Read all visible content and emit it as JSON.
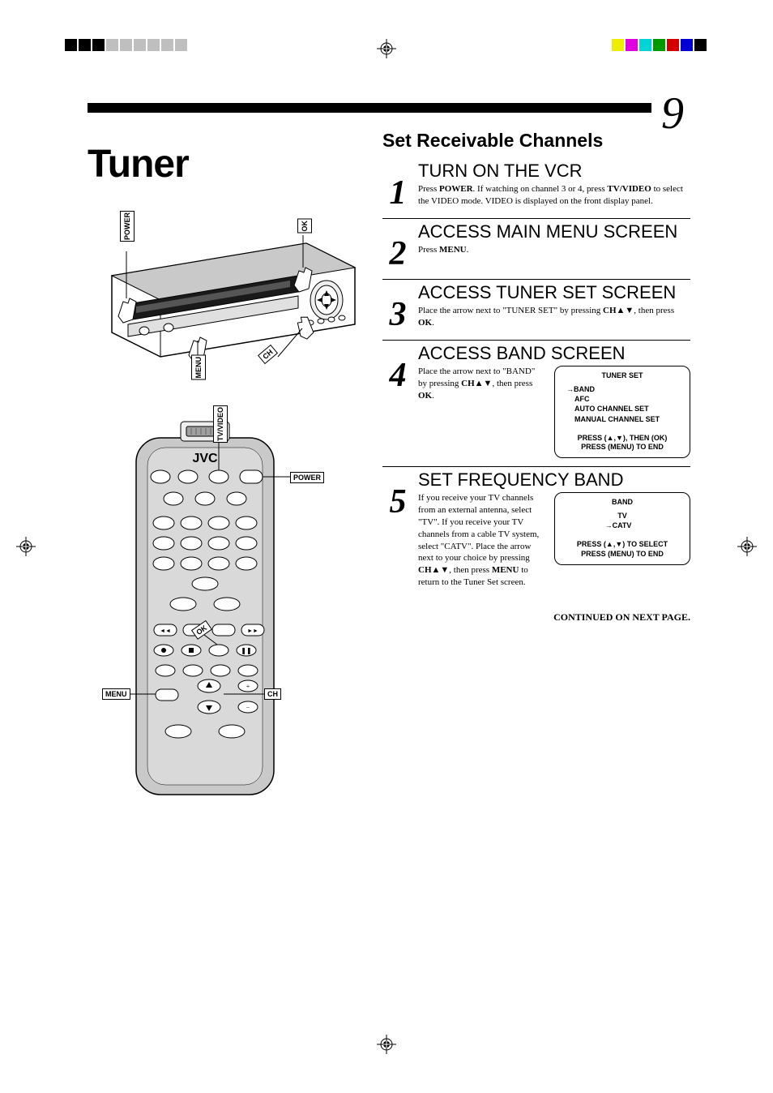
{
  "page_number": "9",
  "main_title": "Tuner",
  "section_title": "Set Receivable Channels",
  "crop_colors_left": [
    "#000000",
    "#000000",
    "#000000",
    "#bfbfbf",
    "#bfbfbf",
    "#bfbfbf",
    "#bfbfbf",
    "#bfbfbf",
    "#bfbfbf"
  ],
  "crop_colors_right": [
    "#eded00",
    "#e000e0",
    "#00d4d4",
    "#009a00",
    "#d40000",
    "#0000d4",
    "#000000"
  ],
  "callouts_vcr": {
    "power": "POWER",
    "ok": "OK",
    "menu": "MENU",
    "ch": "CH"
  },
  "callouts_remote": {
    "tvvideo": "TV/VIDEO",
    "power": "POWER",
    "ok": "OK",
    "menu": "MENU",
    "ch": "CH",
    "brand": "JVC"
  },
  "steps": [
    {
      "num": "1",
      "heading": "TURN ON THE VCR",
      "body_html": "Press <b>POWER</b>. If watching on channel 3 or 4, press <b>TV/VIDEO</b> to select the VIDEO mode. VIDEO is displayed on the front display panel."
    },
    {
      "num": "2",
      "heading": "ACCESS MAIN MENU SCREEN",
      "body_html": "Press <b>MENU</b>."
    },
    {
      "num": "3",
      "heading": "ACCESS TUNER SET SCREEN",
      "body_html": "Place the arrow next to \"TUNER SET\" by pressing <b>CH</b>▲▼, then press <b>OK</b>."
    },
    {
      "num": "4",
      "heading": "ACCESS BAND SCREEN",
      "body_html": "Place the arrow next to \"BAND\" by pressing <b>CH</b>▲▼, then press <b>OK</b>.",
      "osd": {
        "title": "TUNER SET",
        "items": [
          "BAND",
          "AFC",
          "AUTO CHANNEL SET",
          "MANUAL CHANNEL SET"
        ],
        "selected_index": 0,
        "hint": "PRESS (▲,▼), THEN (OK)\nPRESS (MENU) TO END"
      }
    },
    {
      "num": "5",
      "heading": "SET FREQUENCY BAND",
      "body_html": "If you receive your TV channels from an external antenna, select \"TV\". If you receive your TV channels from a cable TV system, select \"CATV\". Place the arrow next to your choice by pressing <b>CH</b>▲▼, then press <b>MENU</b> to return to the Tuner Set screen.",
      "osd": {
        "title": "BAND",
        "items": [
          "TV",
          "CATV"
        ],
        "selected_index": 1,
        "hint": "PRESS (▲,▼) TO SELECT\nPRESS (MENU) TO END",
        "center_items": true
      }
    }
  ],
  "continued": "CONTINUED ON NEXT PAGE."
}
